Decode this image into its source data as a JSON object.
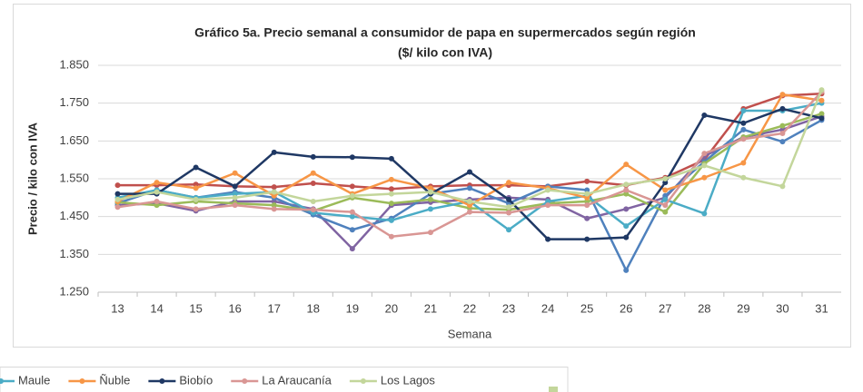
{
  "chart_data": {
    "type": "line",
    "title": "Gráfico 5a. Precio semanal a consumidor de papa en supermercados según región",
    "subtitle": "($/ kilo con IVA)",
    "x_label": "Semana",
    "y_label": "Precio / kilo con IVA",
    "categories": [
      "13",
      "14",
      "15",
      "16",
      "17",
      "18",
      "19",
      "20",
      "21",
      "22",
      "23",
      "24",
      "25",
      "26",
      "27",
      "28",
      "29",
      "30",
      "31"
    ],
    "ylim": [
      1250,
      1850
    ],
    "yticks": [
      {
        "value": 1250,
        "label": "1.250"
      },
      {
        "value": 1350,
        "label": "1.350"
      },
      {
        "value": 1450,
        "label": "1.450"
      },
      {
        "value": 1550,
        "label": "1.550"
      },
      {
        "value": 1650,
        "label": "1.650"
      },
      {
        "value": 1750,
        "label": "1.750"
      },
      {
        "value": 1850,
        "label": "1.850"
      }
    ],
    "grid": true,
    "legend": "bottom",
    "series": [
      {
        "color": "#c0504d",
        "values": [
          1533,
          1533,
          1535,
          1530,
          1528,
          1538,
          1530,
          1523,
          1530,
          1533,
          1533,
          1530,
          1543,
          1533,
          1553,
          1600,
          1735,
          1770,
          1775
        ]
      },
      {
        "color": "#8064a2",
        "values": [
          1480,
          1485,
          1465,
          1490,
          1490,
          1470,
          1365,
          1480,
          1488,
          1495,
          1500,
          1495,
          1445,
          1470,
          1500,
          1610,
          1660,
          1680,
          1715
        ]
      },
      {
        "color": "#4f81bd",
        "values": [
          1485,
          1520,
          1500,
          1515,
          1500,
          1455,
          1415,
          1445,
          1510,
          1525,
          1485,
          1530,
          1520,
          1308,
          1505,
          1595,
          1680,
          1648,
          1705
        ]
      },
      {
        "color": "#9bbb59",
        "values": [
          1488,
          1480,
          1490,
          1485,
          1480,
          1465,
          1500,
          1485,
          1495,
          1472,
          1468,
          1485,
          1490,
          1510,
          1462,
          1590,
          1660,
          1690,
          1722
        ]
      },
      {
        "name": "Maule",
        "color": "#4bacc6",
        "values": [
          1500,
          1520,
          1500,
          1510,
          1515,
          1460,
          1450,
          1440,
          1470,
          1490,
          1415,
          1490,
          1505,
          1425,
          1495,
          1458,
          1730,
          1730,
          1750
        ]
      },
      {
        "name": "Ñuble",
        "color": "#f79646",
        "values": [
          1490,
          1540,
          1525,
          1565,
          1505,
          1565,
          1510,
          1548,
          1525,
          1480,
          1540,
          1525,
          1500,
          1588,
          1520,
          1553,
          1592,
          1773,
          1757
        ]
      },
      {
        "name": "Biobío",
        "color": "#1f3864",
        "values": [
          1510,
          1510,
          1580,
          1530,
          1620,
          1608,
          1607,
          1603,
          1510,
          1568,
          1495,
          1390,
          1390,
          1395,
          1540,
          1718,
          1697,
          1735,
          1710
        ]
      },
      {
        "name": "La Araucanía",
        "color": "#d99694",
        "values": [
          1475,
          1490,
          1470,
          1480,
          1470,
          1468,
          1462,
          1397,
          1408,
          1462,
          1460,
          1480,
          1480,
          1520,
          1480,
          1617,
          1655,
          1670,
          1780
        ]
      },
      {
        "name": "Los Lagos",
        "color": "#c3d69b",
        "values": [
          1495,
          1515,
          1495,
          1500,
          1515,
          1490,
          1505,
          1510,
          1515,
          1490,
          1475,
          1520,
          1510,
          1535,
          1550,
          1585,
          1553,
          1530,
          1785
        ]
      }
    ]
  }
}
